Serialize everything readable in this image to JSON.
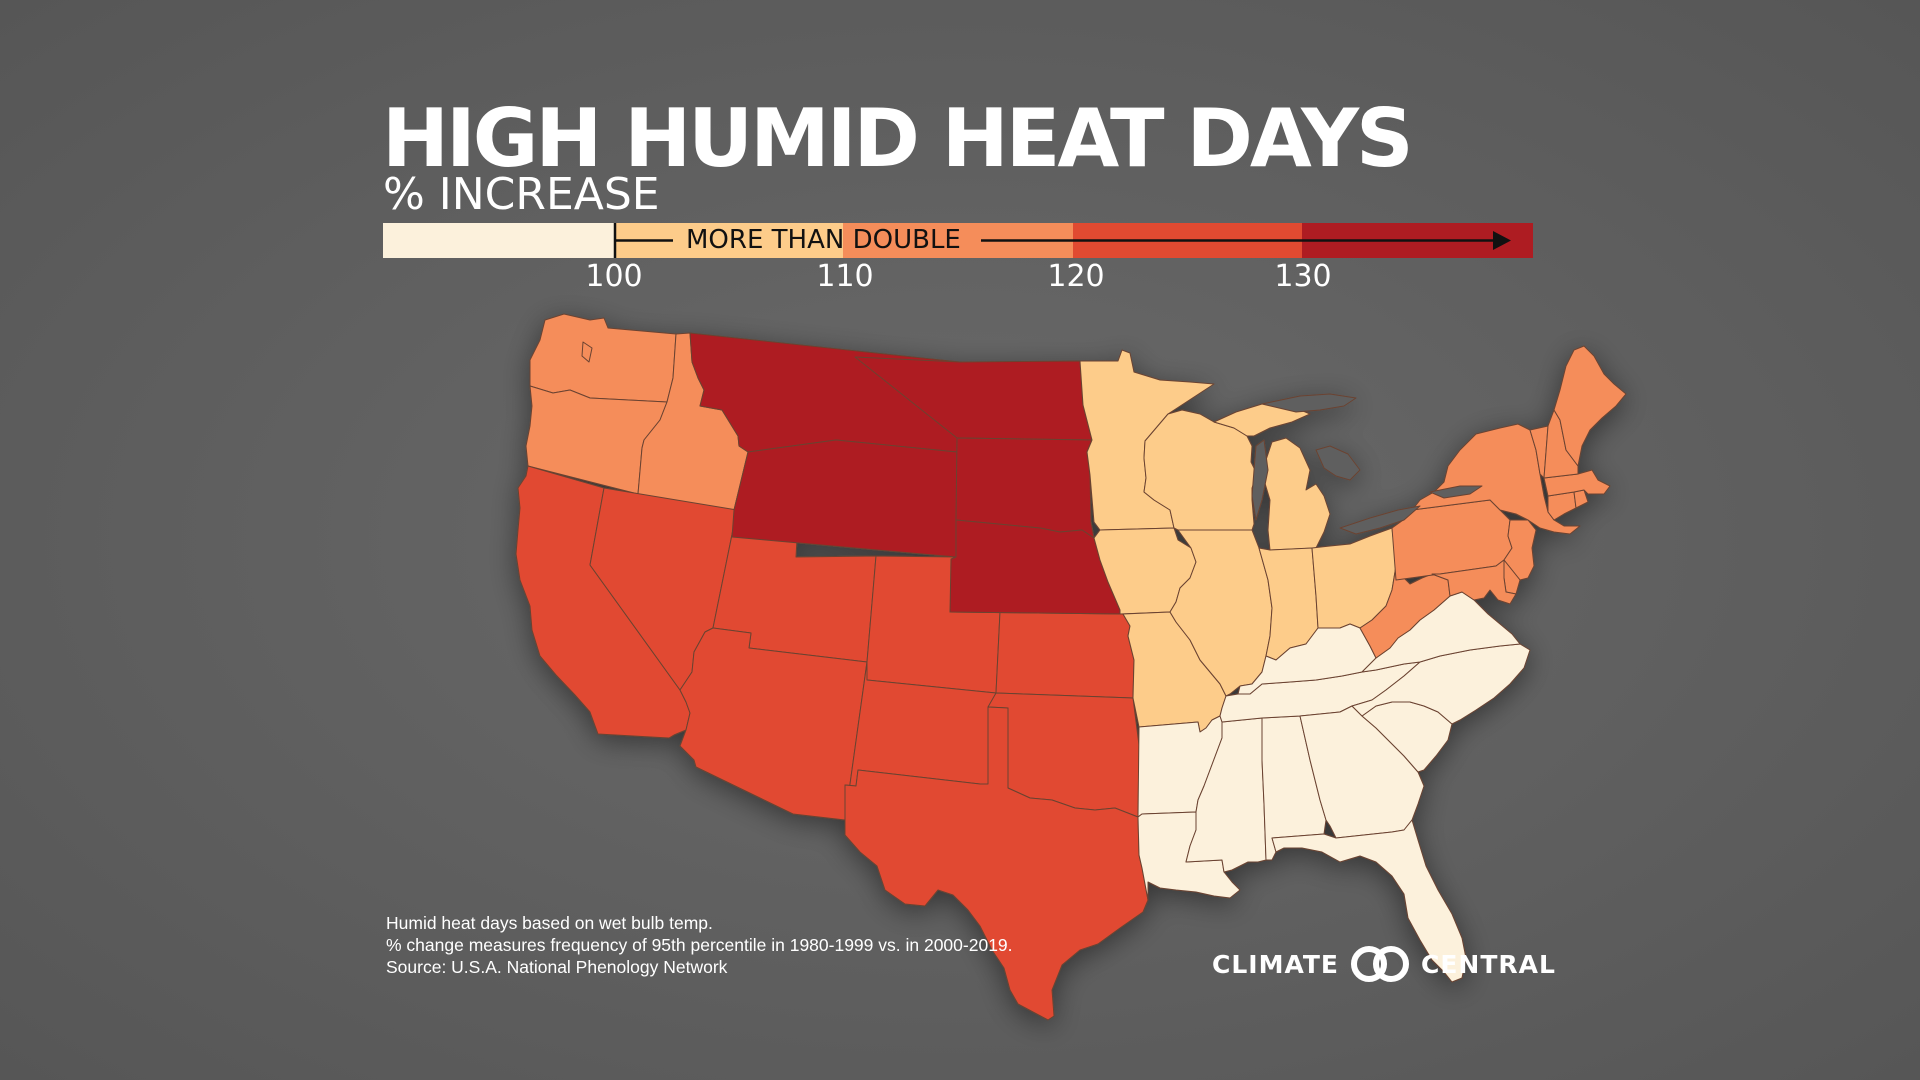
{
  "title": "HIGH HUMID HEAT DAYS",
  "subtitle": "% INCREASE",
  "legend": {
    "annotation": "MORE THAN DOUBLE",
    "ticks": [
      "100",
      "110",
      "120",
      "130"
    ],
    "bins": [
      {
        "range": "< 100",
        "color": "#fcf1dc"
      },
      {
        "range": "100–110",
        "color": "#fdcc8a"
      },
      {
        "range": "110–120",
        "color": "#f58d5a"
      },
      {
        "range": "120–130",
        "color": "#e14a31"
      },
      {
        "range": "> 130",
        "color": "#ae1c22"
      }
    ]
  },
  "colors": {
    "bin0": "#fcf1dc",
    "bin1": "#fdcc8a",
    "bin2": "#f58d5a",
    "bin3": "#e14a31",
    "bin4": "#ae1c22",
    "background": "#626262",
    "border": "#5a3a2a"
  },
  "map": {
    "type": "choropleth",
    "region": "Contiguous United States",
    "state_bins": {
      "WA": 2,
      "OR": 2,
      "ID": 2,
      "CA": 3,
      "NV": 3,
      "UT": 3,
      "AZ": 3,
      "CO": 3,
      "NM": 3,
      "KS": 3,
      "OK": 3,
      "TX": 3,
      "MT": 4,
      "WY": 4,
      "ND": 4,
      "SD": 4,
      "NE": 4,
      "MN": 1,
      "IA": 1,
      "MO": 1,
      "WI": 1,
      "IL": 1,
      "MI": 1,
      "IN": 1,
      "OH": 1,
      "AR": 0,
      "LA": 0,
      "MS": 0,
      "AL": 0,
      "TN": 0,
      "KY": 0,
      "GA": 0,
      "FL": 0,
      "SC": 0,
      "NC": 0,
      "VA": 0,
      "WV": 2,
      "PA": 2,
      "NY": 2,
      "NJ": 2,
      "DE": 2,
      "MD": 2,
      "CT": 2,
      "RI": 2,
      "MA": 2,
      "VT": 2,
      "NH": 2,
      "ME": 2
    }
  },
  "footnotes": [
    "Humid heat days based on wet bulb temp.",
    "% change measures frequency of 95th percentile in 1980-1999 vs. in 2000-2019.",
    "Source: U.S.A. National Phenology Network"
  ],
  "logo": {
    "left": "CLIMATE",
    "right": "CENTRAL"
  }
}
